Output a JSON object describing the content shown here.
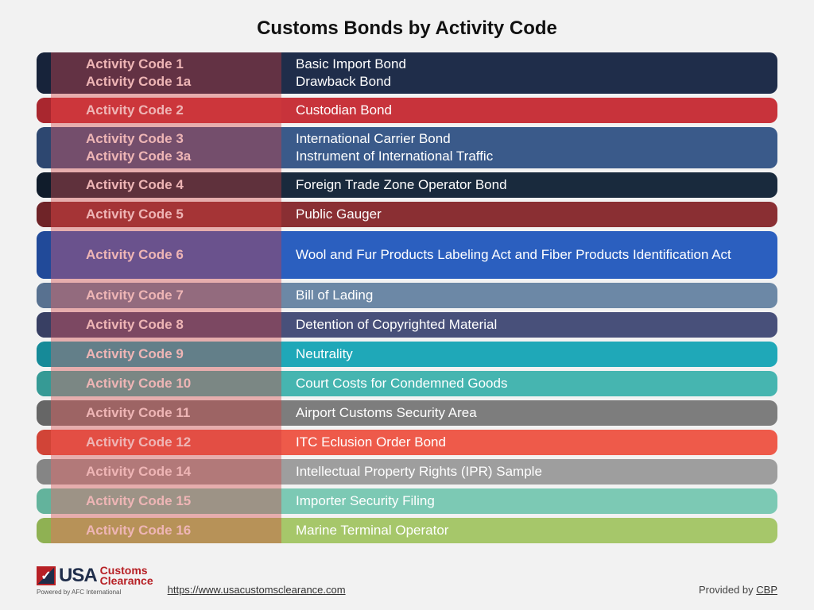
{
  "title": "Customs Bonds by Activity Code",
  "rows": [
    {
      "height": "double",
      "bg": "#1f2d4a",
      "tab": "#17233a",
      "codes": [
        "Activity Code 1",
        "Activity Code 1a"
      ],
      "descs": [
        "Basic Import Bond",
        "Drawback Bond"
      ]
    },
    {
      "height": "single",
      "bg": "#c8333b",
      "tab": "#a9272f",
      "codes": [
        "Activity Code 2"
      ],
      "descs": [
        "Custodian Bond"
      ]
    },
    {
      "height": "double",
      "bg": "#3a5a8a",
      "tab": "#2d4770",
      "codes": [
        "Activity Code 3",
        "Activity Code 3a"
      ],
      "descs": [
        "International Carrier Bond",
        "Instrument of International Traffic"
      ]
    },
    {
      "height": "single",
      "bg": "#192a3d",
      "tab": "#101c2b",
      "codes": [
        "Activity Code 4"
      ],
      "descs": [
        "Foreign Trade Zone Operator Bond"
      ]
    },
    {
      "height": "single",
      "bg": "#8a2f33",
      "tab": "#6f2428",
      "codes": [
        "Activity Code 5"
      ],
      "descs": [
        "Public Gauger"
      ]
    },
    {
      "height": "tall",
      "bg": "#2b5fbf",
      "tab": "#214a99",
      "codes": [
        "Activity Code 6"
      ],
      "descs": [
        "Wool and Fur Products Labeling Act and Fiber Products Identification Act"
      ]
    },
    {
      "height": "single",
      "bg": "#6c88a6",
      "tab": "#587190",
      "codes": [
        "Activity Code 7"
      ],
      "descs": [
        "Bill of Lading"
      ]
    },
    {
      "height": "single",
      "bg": "#48507a",
      "tab": "#383f63",
      "codes": [
        "Activity Code 8"
      ],
      "descs": [
        "Detention of Copyrighted Material"
      ]
    },
    {
      "height": "single",
      "bg": "#1fa8b8",
      "tab": "#168a98",
      "codes": [
        "Activity Code 9"
      ],
      "descs": [
        "Neutrality"
      ]
    },
    {
      "height": "single",
      "bg": "#46b5b0",
      "tab": "#369a95",
      "codes": [
        "Activity Code 10"
      ],
      "descs": [
        "Court Costs for Condemned Goods"
      ]
    },
    {
      "height": "single",
      "bg": "#7d7d7d",
      "tab": "#666666",
      "codes": [
        "Activity Code 11"
      ],
      "descs": [
        "Airport Customs Security Area"
      ]
    },
    {
      "height": "single",
      "bg": "#ee5a4a",
      "tab": "#d14437",
      "codes": [
        "Activity Code 12"
      ],
      "descs": [
        "ITC Eclusion Order Bond"
      ]
    },
    {
      "height": "single",
      "bg": "#9e9e9e",
      "tab": "#858585",
      "codes": [
        "Activity Code 14"
      ],
      "descs": [
        "Intellectual Property Rights (IPR) Sample"
      ]
    },
    {
      "height": "single",
      "bg": "#7cc9b4",
      "tab": "#63b39c",
      "codes": [
        "Activity Code 15"
      ],
      "descs": [
        "Importer Security Filing"
      ]
    },
    {
      "height": "single",
      "bg": "#a6c76a",
      "tab": "#8fb153",
      "codes": [
        "Activity Code 16"
      ],
      "descs": [
        "Marine Terminal Operator"
      ]
    }
  ],
  "footer": {
    "logo_usa": "USA",
    "logo_line1": "Customs",
    "logo_line2": "Clearance",
    "logo_sub": "Powered by AFC International",
    "url": "https://www.usacustomsclearance.com",
    "provided_prefix": "Provided by ",
    "provided_link": "CBP"
  }
}
